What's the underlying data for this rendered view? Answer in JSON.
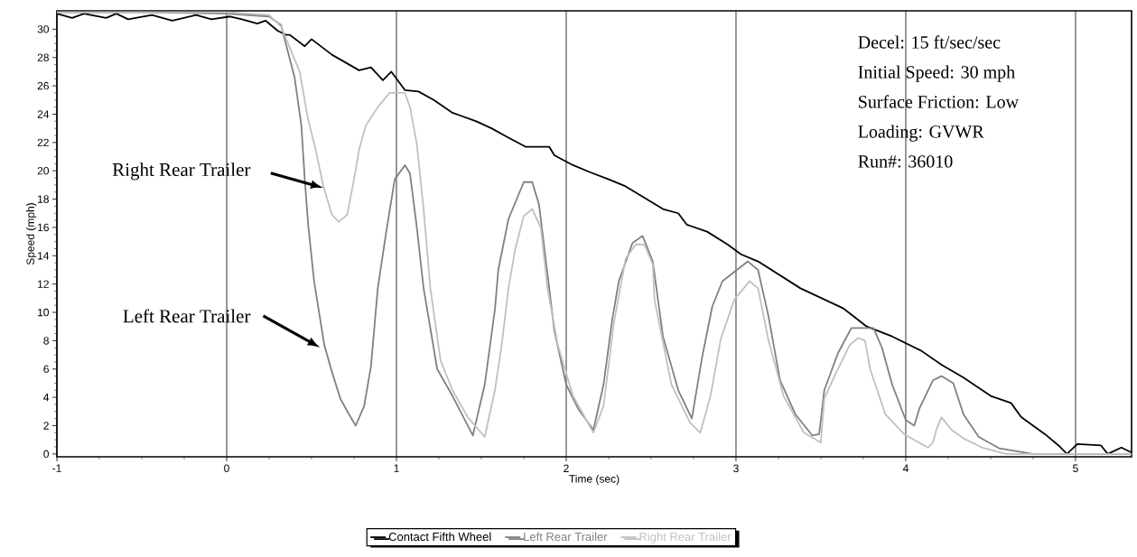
{
  "chart_data": {
    "type": "line",
    "xlabel": "Time (sec)",
    "ylabel": "Speed (mph)",
    "xlim": [
      -1,
      5.33
    ],
    "ylim": [
      -0.2,
      31.3
    ],
    "xticks": [
      -1,
      0,
      1,
      2,
      3,
      4,
      5
    ],
    "yticks": [
      0,
      2,
      4,
      6,
      8,
      10,
      12,
      14,
      16,
      18,
      20,
      22,
      24,
      26,
      28,
      30
    ],
    "grid": "x",
    "legend": "bottom",
    "marker": "none",
    "line_style": "solid",
    "annotations": [
      "Right Rear Trailer",
      "Left Rear Trailer",
      "Decel: 15 ft/sec/sec",
      "Initial Speed: 30 mph",
      "Surface Friction:  Low",
      "Loading: GVWR",
      "Run#: 36010"
    ],
    "series": [
      {
        "name": "Contact Fifth Wheel",
        "color": "#000000",
        "x": [
          -1,
          -0.91,
          -0.84,
          -0.71,
          -0.65,
          -0.58,
          -0.44,
          -0.32,
          -0.18,
          -0.09,
          0.02,
          0.09,
          0.18,
          0.23,
          0.3,
          0.35,
          0.372,
          0.46,
          0.5,
          0.62,
          0.78,
          0.85,
          0.92,
          0.97,
          1.05,
          1.13,
          1.22,
          1.33,
          1.47,
          1.56,
          1.65,
          1.76,
          1.9,
          1.93,
          2.04,
          2.14,
          2.25,
          2.35,
          2.46,
          2.57,
          2.66,
          2.71,
          2.83,
          2.95,
          3.03,
          3.13,
          3.38,
          3.63,
          3.77,
          3.92,
          4.09,
          4.21,
          4.34,
          4.5,
          4.62,
          4.68,
          4.82,
          4.9,
          4.95,
          5.01,
          5.15,
          5.19,
          5.27,
          5.33
        ],
        "values": [
          31.1,
          30.8,
          31.1,
          30.8,
          31.1,
          30.7,
          31.0,
          30.6,
          31.0,
          30.7,
          30.9,
          30.7,
          30.4,
          30.6,
          29.9,
          29.6,
          29.6,
          28.8,
          29.3,
          28.2,
          27.1,
          27.3,
          26.4,
          27.0,
          25.7,
          25.6,
          25.0,
          24.1,
          23.5,
          23.0,
          22.4,
          21.7,
          21.7,
          21.1,
          20.4,
          19.9,
          19.4,
          18.9,
          18.1,
          17.3,
          17.0,
          16.2,
          15.7,
          14.8,
          14.1,
          13.6,
          11.7,
          10.3,
          9.0,
          8.3,
          7.3,
          6.3,
          5.4,
          4.1,
          3.6,
          2.6,
          1.4,
          0.6,
          0,
          0.7,
          0.6,
          0,
          0.45,
          0.1
        ]
      },
      {
        "name": "Left Rear Trailer",
        "color": "#808080",
        "x": [
          -1,
          -0.5,
          0,
          0.25,
          0.32,
          0.4,
          0.44,
          0.46,
          0.48,
          0.515,
          0.575,
          0.62,
          0.67,
          0.73,
          0.76,
          0.81,
          0.85,
          0.89,
          0.94,
          0.99,
          1.05,
          1.08,
          1.12,
          1.16,
          1.24,
          1.33,
          1.45,
          1.52,
          1.58,
          1.6,
          1.66,
          1.75,
          1.8,
          1.84,
          1.9,
          1.93,
          2.0,
          2.07,
          2.16,
          2.22,
          2.27,
          2.31,
          2.39,
          2.45,
          2.51,
          2.57,
          2.66,
          2.74,
          2.8,
          2.86,
          2.92,
          3.07,
          3.13,
          3.19,
          3.26,
          3.35,
          3.45,
          3.49,
          3.52,
          3.6,
          3.68,
          3.81,
          3.86,
          3.92,
          4.0,
          4.05,
          4.08,
          4.16,
          4.21,
          4.28,
          4.34,
          4.43,
          4.55,
          4.75,
          5.33
        ],
        "values": [
          31.2,
          31.2,
          31.1,
          30.9,
          30.3,
          26.6,
          23.2,
          19.4,
          16.2,
          12.2,
          7.7,
          5.8,
          3.9,
          2.6,
          2.0,
          3.4,
          6.2,
          11.7,
          15.7,
          19.4,
          20.4,
          19.8,
          16.0,
          11.7,
          6.0,
          4.1,
          1.3,
          4.9,
          10.2,
          13.0,
          16.6,
          19.2,
          19.2,
          17.6,
          11.7,
          8.7,
          4.9,
          3.2,
          1.7,
          4.9,
          9.4,
          12.2,
          14.9,
          15.4,
          13.6,
          8.3,
          4.5,
          2.5,
          6.8,
          10.4,
          12.2,
          13.6,
          13.0,
          9.8,
          5.2,
          2.8,
          1.3,
          1.4,
          4.5,
          7.1,
          8.9,
          8.9,
          7.5,
          4.9,
          2.4,
          2.0,
          3.2,
          5.2,
          5.5,
          5.0,
          2.8,
          1.2,
          0.4,
          0,
          0
        ]
      },
      {
        "name": "Right Rear Trailer",
        "color": "#c0c0c0",
        "x": [
          -1,
          -0.5,
          0,
          0.25,
          0.32,
          0.43,
          0.48,
          0.52,
          0.57,
          0.62,
          0.66,
          0.71,
          0.75,
          0.78,
          0.82,
          0.89,
          0.96,
          1.05,
          1.08,
          1.12,
          1.16,
          1.2,
          1.26,
          1.33,
          1.42,
          1.52,
          1.58,
          1.62,
          1.66,
          1.7,
          1.75,
          1.8,
          1.85,
          1.89,
          1.95,
          2.04,
          2.16,
          2.22,
          2.28,
          2.35,
          2.41,
          2.46,
          2.51,
          2.52,
          2.62,
          2.73,
          2.79,
          2.85,
          2.91,
          2.99,
          3.08,
          3.13,
          3.19,
          3.28,
          3.4,
          3.5,
          3.52,
          3.58,
          3.67,
          3.72,
          3.76,
          3.79,
          3.88,
          3.99,
          4.13,
          4.16,
          4.18,
          4.21,
          4.27,
          4.34,
          4.45,
          4.59,
          5.33
        ],
        "values": [
          31.2,
          31.2,
          31.2,
          31.0,
          30.2,
          27.0,
          23.6,
          21.7,
          18.9,
          16.9,
          16.4,
          16.9,
          19.4,
          21.5,
          23.2,
          24.5,
          25.5,
          25.5,
          24.5,
          21.9,
          17.3,
          11.7,
          6.6,
          4.5,
          2.6,
          1.2,
          4.5,
          7.7,
          11.7,
          14.5,
          16.8,
          17.3,
          16.0,
          11.7,
          7.7,
          4.1,
          1.5,
          3.4,
          9.2,
          13.8,
          14.8,
          14.8,
          13.4,
          10.9,
          4.9,
          2.2,
          1.5,
          4.1,
          8.1,
          10.9,
          12.2,
          11.7,
          8.1,
          4.1,
          1.5,
          0.8,
          3.9,
          5.5,
          7.7,
          8.2,
          8.0,
          6.0,
          2.8,
          1.4,
          0.45,
          0.8,
          1.7,
          2.6,
          1.7,
          1.1,
          0.45,
          0,
          0
        ]
      }
    ]
  }
}
